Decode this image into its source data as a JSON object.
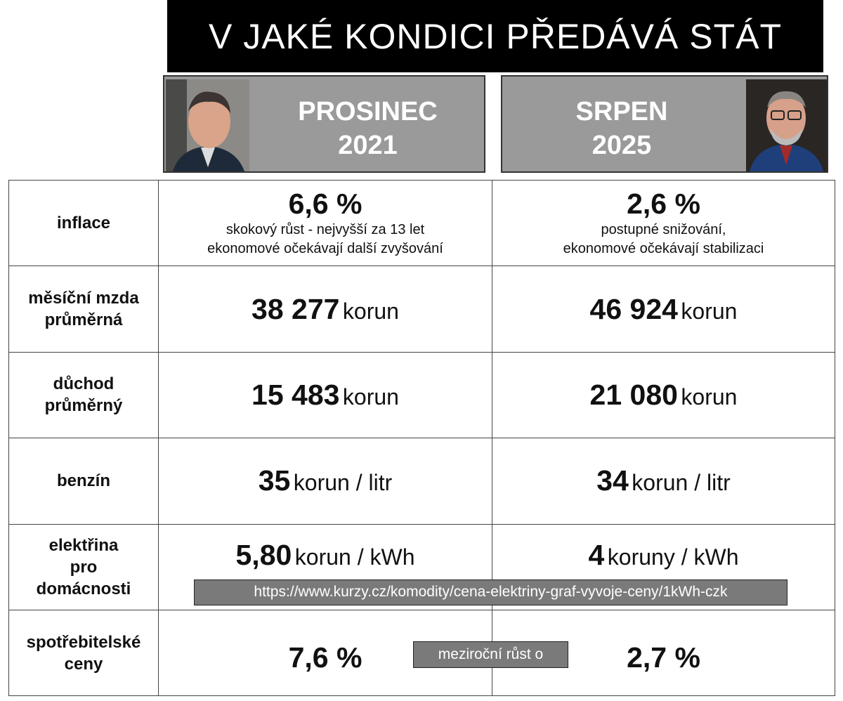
{
  "title": "V JAKÉ KONDICI PŘEDÁVÁ STÁT",
  "periods": [
    {
      "month": "PROSINEC",
      "year": "2021"
    },
    {
      "month": "SRPEN",
      "year": "2025"
    }
  ],
  "rows": [
    {
      "label": [
        "inflace"
      ],
      "cells": [
        {
          "value": "6,6 %",
          "notes": [
            "skokový růst - nejvyšší za 13 let",
            "ekonomové očekávají další zvyšování"
          ]
        },
        {
          "value": "2,6 %",
          "notes": [
            "postupné snižování,",
            "ekonomové očekávají stabilizaci"
          ]
        }
      ]
    },
    {
      "label": [
        "měsíční mzda",
        "průměrná"
      ],
      "cells": [
        {
          "value": "38 277",
          "unit": "korun"
        },
        {
          "value": "46 924",
          "unit": "korun"
        }
      ]
    },
    {
      "label": [
        "důchod",
        "průměrný"
      ],
      "cells": [
        {
          "value": "15 483",
          "unit": "korun"
        },
        {
          "value": "21 080",
          "unit": "korun"
        }
      ]
    },
    {
      "label": [
        "benzín"
      ],
      "cells": [
        {
          "value": "35",
          "unit": "korun / litr"
        },
        {
          "value": "34",
          "unit": "korun / litr"
        }
      ]
    },
    {
      "label": [
        "elektřina",
        "pro",
        "domácnosti"
      ],
      "cells": [
        {
          "value": "5,80",
          "unit": "korun / kWh"
        },
        {
          "value": "4",
          "unit": "koruny / kWh"
        }
      ],
      "source": "https://www.kurzy.cz/komodity/cena-elektriny-graf-vyvoje-ceny/1kWh-czk"
    },
    {
      "label": [
        "spotřebitelské",
        "ceny"
      ],
      "cells": [
        {
          "value": "7,6 %"
        },
        {
          "value": "2,7 %"
        }
      ],
      "note": "meziroční růst o"
    }
  ]
}
